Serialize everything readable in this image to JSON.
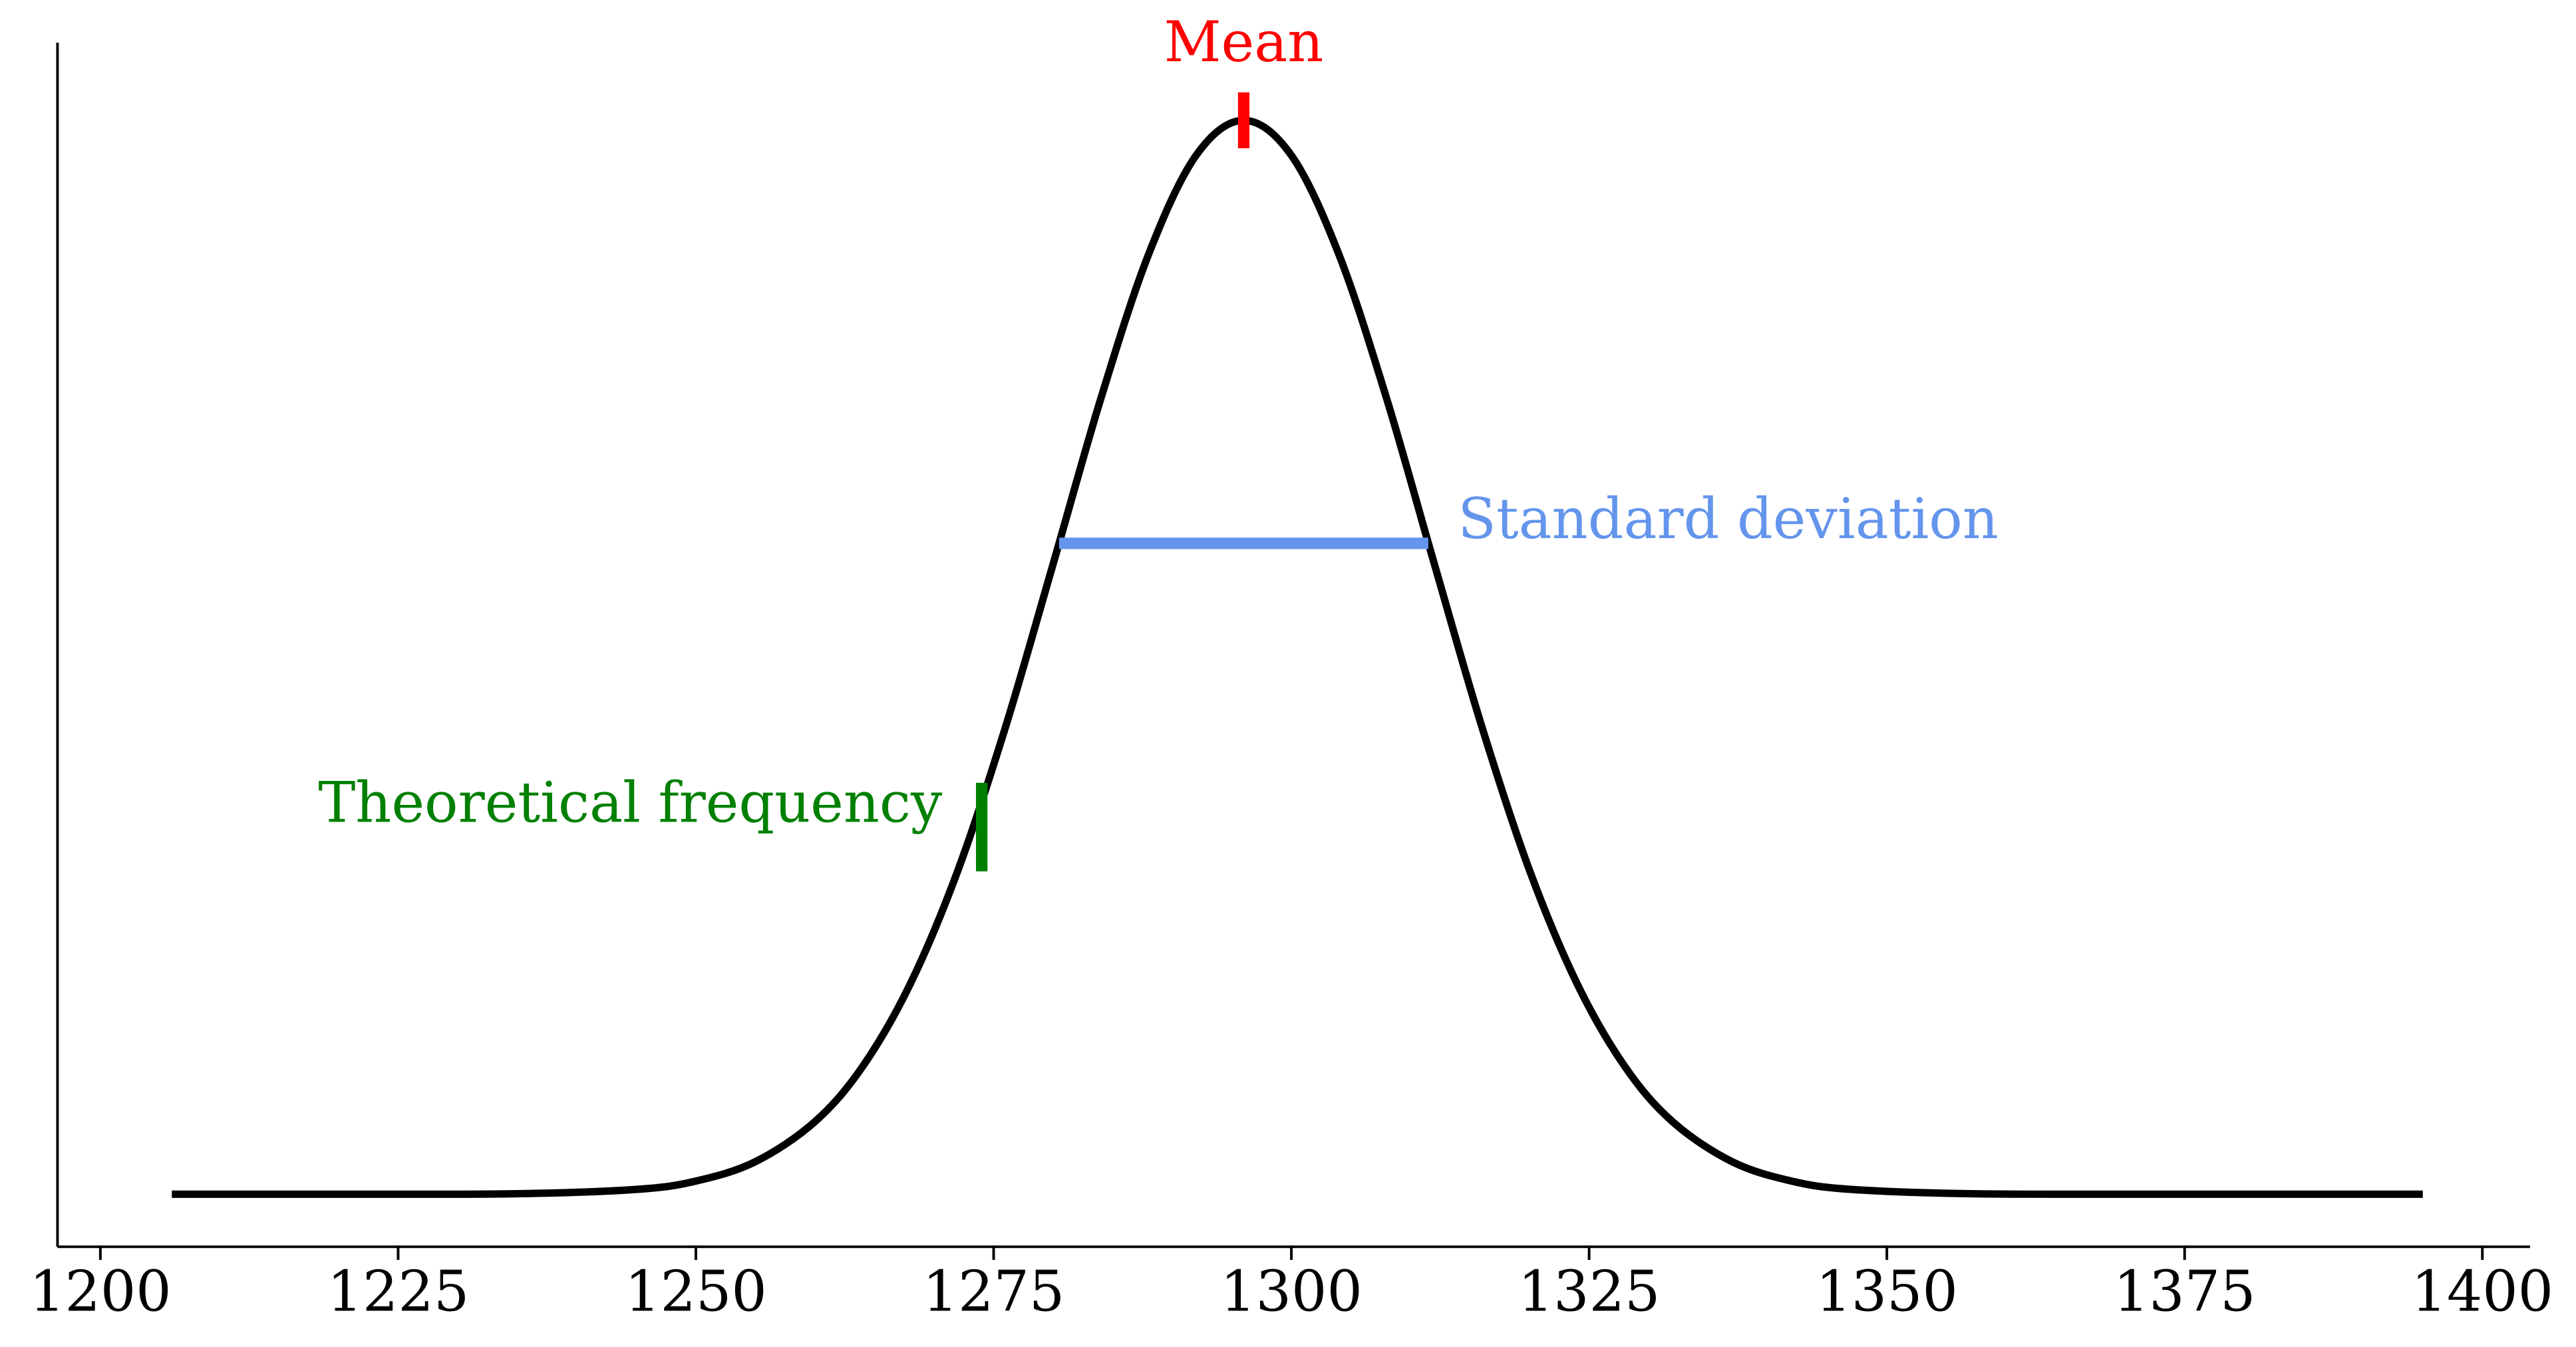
{
  "chart_data": {
    "type": "line",
    "x": [
      1206,
      1220,
      1235,
      1245,
      1250,
      1255,
      1260,
      1264,
      1268,
      1272,
      1276,
      1280,
      1284,
      1288,
      1292,
      1296,
      1300,
      1304,
      1308,
      1312,
      1316,
      1320,
      1324,
      1328,
      1332,
      1337,
      1342,
      1347,
      1357,
      1372,
      1395
    ],
    "series": [
      {
        "color": "#000000",
        "values": [
          0,
          0,
          1.12e-05,
          0.000115,
          0.000315,
          0.00078,
          0.00174,
          0.00306,
          0.00504,
          0.00776,
          0.0112,
          0.01511,
          0.01907,
          0.02252,
          0.0249,
          0.02574,
          0.0249,
          0.02252,
          0.01907,
          0.01511,
          0.0112,
          0.00776,
          0.00504,
          0.00306,
          0.00174,
          0.00078,
          0.000315,
          0.000115,
          1.12e-05,
          0,
          0
        ]
      }
    ],
    "xlim": [
      1196.4,
      1404
    ],
    "xticks": [
      1200,
      1225,
      1250,
      1275,
      1300,
      1325,
      1350,
      1375,
      1400
    ],
    "ylim": [
      -0.00126,
      0.0276
    ],
    "annotations": [
      {
        "text": "Mean",
        "color": "#ff0000",
        "x": 1296,
        "y": 0.02574
      },
      {
        "text": "Standard deviation",
        "color": "#6495ed",
        "x": [
          1280.5,
          1311.5
        ],
        "y": 0.0156
      },
      {
        "text": "Theoretical frequency",
        "color": "#008000",
        "x": 1274,
        "y": 0.0088
      }
    ]
  }
}
